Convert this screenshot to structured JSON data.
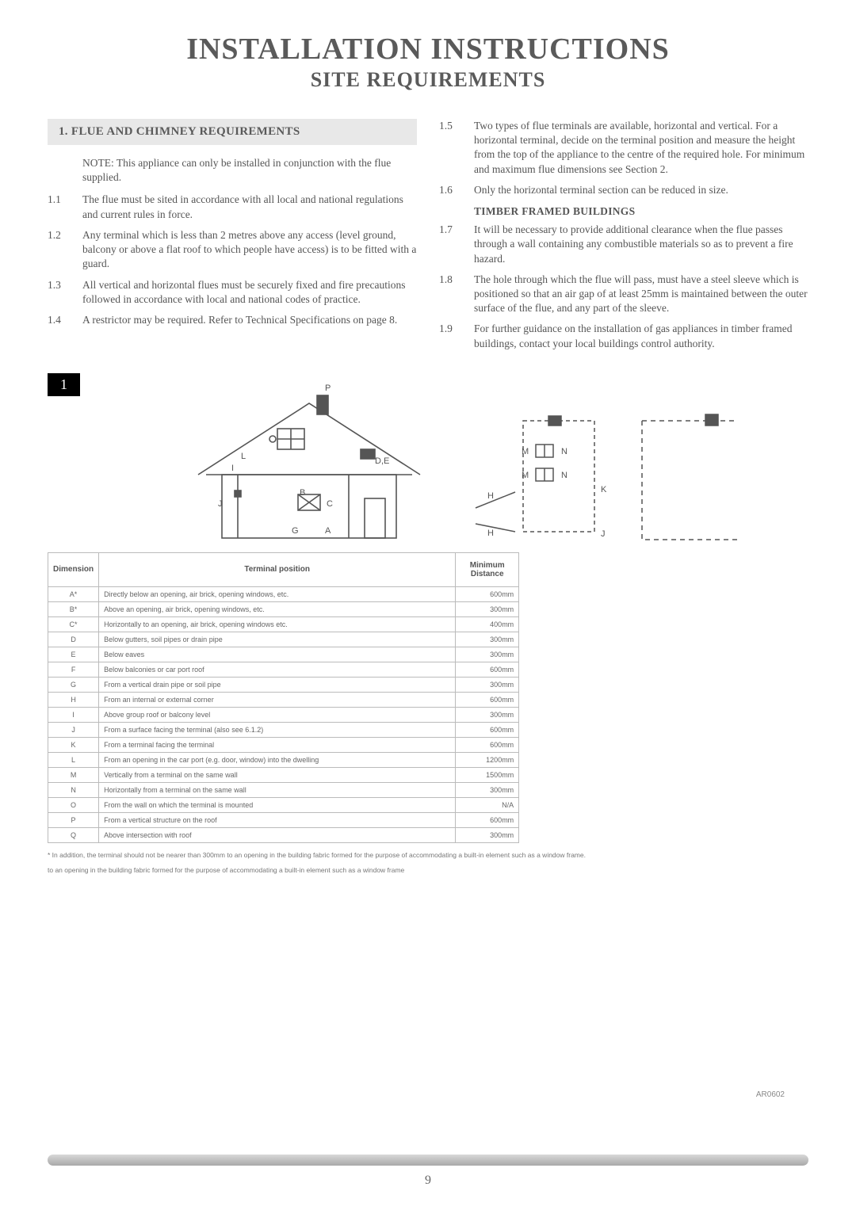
{
  "titles": {
    "main": "INSTALLATION INSTRUCTIONS",
    "sub": "SITE REQUIREMENTS"
  },
  "section1": {
    "header": "1. FLUE AND CHIMNEY REQUIREMENTS",
    "note": "NOTE: This appliance can only be installed in conjunction with the flue supplied.",
    "items": [
      {
        "n": "1.1",
        "t": "The flue must be sited in accordance with all local and national regulations and current rules in force."
      },
      {
        "n": "1.2",
        "t": "Any terminal which is less than 2 metres above any access (level ground, balcony or above a flat roof to which people have access) is to be fitted with a guard."
      },
      {
        "n": "1.3",
        "t": "All vertical and horizontal flues must be securely fixed and fire precautions followed in accordance with local and national codes of practice."
      },
      {
        "n": "1.4",
        "t": "A restrictor may be required. Refer to Technical Specifications on page 8."
      }
    ]
  },
  "section2": {
    "items": [
      {
        "n": "1.5",
        "t": "Two types of flue terminals are available, horizontal and vertical. For a horizontal terminal, decide on the terminal position and measure the height from the top of the appliance to the centre of the required hole. For minimum and maximum flue dimensions see Section 2."
      },
      {
        "n": "1.6",
        "t": "Only the horizontal terminal section can be reduced in size."
      }
    ],
    "subheading": "TIMBER FRAMED BUILDINGS",
    "items2": [
      {
        "n": "1.7",
        "t": "It will be necessary to provide additional clearance when the flue passes through a wall containing any combustible materials so as to prevent a fire hazard."
      },
      {
        "n": "1.8",
        "t": "The hole through which the flue will pass, must have a steel sleeve which is positioned so that an air gap of at least 25mm is maintained between the outer surface of the flue, and any part of the sleeve."
      },
      {
        "n": "1.9",
        "t": "For further guidance on the installation of gas appliances in timber framed buildings, contact your local buildings control authority."
      }
    ]
  },
  "figure": {
    "label": "1",
    "table": {
      "headers": [
        "Dimension",
        "Terminal position",
        "Minimum Distance"
      ],
      "rows": [
        [
          "A*",
          "Directly below an opening, air brick, opening windows, etc.",
          "600mm"
        ],
        [
          "B*",
          "Above an opening, air brick, opening windows, etc.",
          "300mm"
        ],
        [
          "C*",
          "Horizontally to an opening, air brick, opening windows etc.",
          "400mm"
        ],
        [
          "D",
          "Below gutters, soil pipes or drain pipe",
          "300mm"
        ],
        [
          "E",
          "Below eaves",
          "300mm"
        ],
        [
          "F",
          "Below balconies or car port roof",
          "600mm"
        ],
        [
          "G",
          "From a vertical drain pipe or soil pipe",
          "300mm"
        ],
        [
          "H",
          "From an internal or external corner",
          "600mm"
        ],
        [
          "I",
          "Above group roof or balcony level",
          "300mm"
        ],
        [
          "J",
          "From a surface facing the terminal (also see 6.1.2)",
          "600mm"
        ],
        [
          "K",
          "From a terminal facing the terminal",
          "600mm"
        ],
        [
          "L",
          "From an opening in the car port (e.g. door, window) into the dwelling",
          "1200mm"
        ],
        [
          "M",
          "Vertically from a terminal on the same wall",
          "1500mm"
        ],
        [
          "N",
          "Horizontally from a terminal on the same wall",
          "300mm"
        ],
        [
          "O",
          "From the wall on which the terminal is mounted",
          "N/A"
        ],
        [
          "P",
          "From a vertical structure on the roof",
          "600mm"
        ],
        [
          "Q",
          "Above intersection with roof",
          "300mm"
        ]
      ]
    },
    "footnotes": [
      "* In addition, the terminal should not be nearer than 300mm to an opening in the building fabric formed for the purpose of accommodating a built-in element such as a window frame.",
      "to an opening in the building fabric formed for the purpose of accommodating a built-in element such as a window frame"
    ],
    "code": "AR0602"
  },
  "page": "9"
}
